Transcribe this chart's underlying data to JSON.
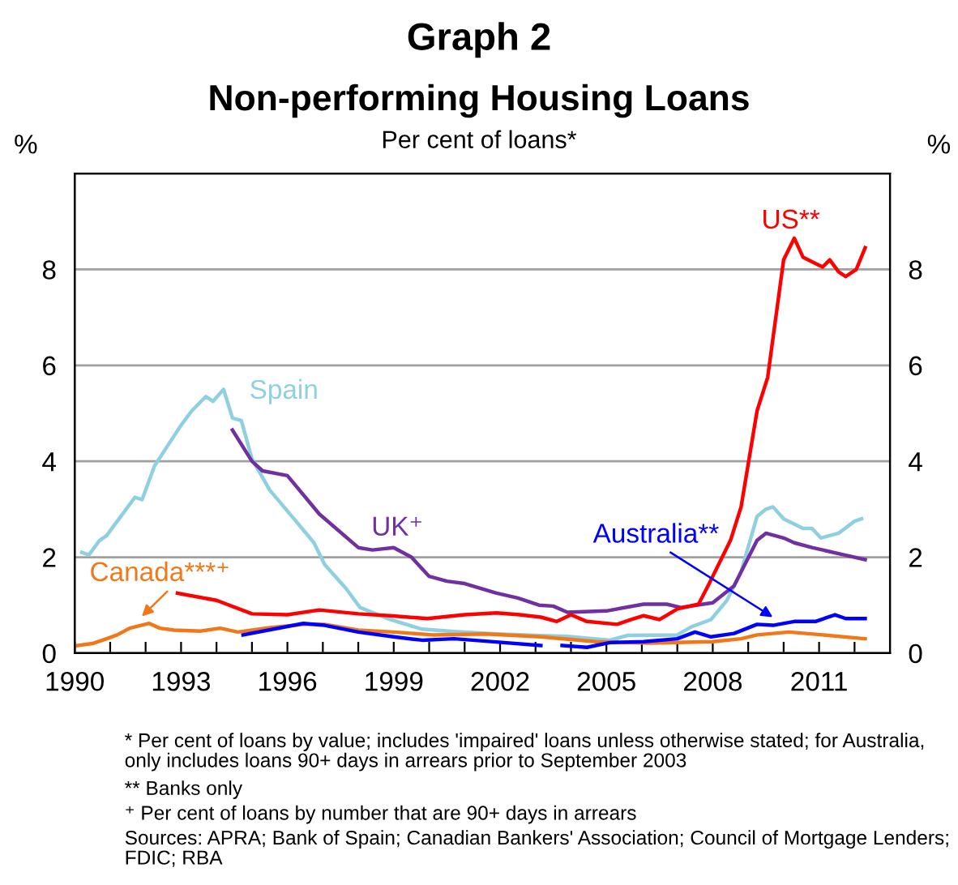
{
  "chart_data": {
    "type": "line",
    "title": "Non-performing Housing Loans",
    "subtitle": "Per cent of loans*",
    "ylabel": "%",
    "y2label": "%",
    "xlim": [
      1990,
      2013
    ],
    "xticks": [
      1990,
      {
        "value": 1991,
        "label": null
      },
      {
        "value": 1992,
        "label": null
      },
      1993,
      {
        "value": 1994,
        "label": null
      },
      {
        "value": 1995,
        "label": null
      },
      1996,
      {
        "value": 1997,
        "label": null
      },
      {
        "value": 1998,
        "label": null
      },
      1999,
      {
        "value": 2000,
        "label": null
      },
      {
        "value": 2001,
        "label": null
      },
      2002,
      {
        "value": 2003,
        "label": null
      },
      {
        "value": 2004,
        "label": null
      },
      2005,
      {
        "value": 2006,
        "label": null
      },
      {
        "value": 2007,
        "label": null
      },
      2008,
      {
        "value": 2009,
        "label": null
      },
      {
        "value": 2010,
        "label": null
      },
      2011,
      {
        "value": 2012,
        "label": null
      }
    ],
    "ylim": [
      0,
      10
    ],
    "yticks": [
      0,
      2,
      4,
      6,
      8
    ],
    "y2lim": [
      0,
      10
    ],
    "y2ticks": [
      0,
      2,
      4,
      6,
      8
    ],
    "grid": "y",
    "legend": false,
    "line_style": "solid",
    "marker": "none",
    "series": [
      {
        "name": "Spain",
        "color": "#8ecfe0",
        "x": [
          1990.2,
          1990.4,
          1990.7,
          1990.9,
          1991.25,
          1991.7,
          1991.9,
          1992.25,
          1992.6,
          1993.0,
          1993.3,
          1993.7,
          1993.9,
          1994.2,
          1994.45,
          1994.7,
          1995.0,
          1995.5,
          1996.3,
          1996.75,
          1997.05,
          1997.65,
          1998.05,
          1998.9,
          1999.8,
          2000.7,
          2001.9,
          2003.0,
          2003.9,
          2005.1,
          2005.6,
          2007.0,
          2007.4,
          2007.95,
          2008.4,
          2008.8,
          2009.25,
          2009.5,
          2009.7,
          2010.0,
          2010.55,
          2010.8,
          2011.05,
          2011.55,
          2012.0,
          2012.2
        ],
        "values": [
          2.1,
          2.05,
          2.35,
          2.45,
          2.8,
          3.25,
          3.2,
          3.9,
          4.3,
          4.75,
          5.05,
          5.35,
          5.25,
          5.5,
          4.9,
          4.85,
          4.05,
          3.4,
          2.7,
          2.3,
          1.85,
          1.35,
          0.95,
          0.7,
          0.5,
          0.45,
          0.4,
          0.37,
          0.35,
          0.27,
          0.37,
          0.38,
          0.55,
          0.7,
          1.1,
          1.7,
          2.85,
          3.0,
          3.05,
          2.8,
          2.6,
          2.6,
          2.4,
          2.5,
          2.75,
          2.8
        ]
      },
      {
        "name": "UK⁺",
        "color": "#7030a0",
        "x": [
          1994.45,
          1995.0,
          1995.3,
          1996.0,
          1996.9,
          1998.0,
          1998.4,
          1999.0,
          1999.5,
          2000.0,
          2000.5,
          2001.0,
          2001.9,
          2002.5,
          2003.1,
          2003.5,
          2003.9,
          2005.0,
          2006.05,
          2006.7,
          2007.1,
          2008.0,
          2008.6,
          2009.25,
          2009.5,
          2010.0,
          2010.3,
          2010.8,
          2011.7,
          2012.3
        ],
        "values": [
          4.65,
          4.0,
          3.8,
          3.7,
          2.9,
          2.2,
          2.15,
          2.2,
          2.0,
          1.6,
          1.5,
          1.45,
          1.25,
          1.15,
          1.0,
          0.98,
          0.85,
          0.88,
          1.02,
          1.02,
          0.95,
          1.05,
          1.4,
          2.35,
          2.5,
          2.4,
          2.3,
          2.2,
          2.05,
          1.95
        ]
      },
      {
        "name": "US**",
        "color": "#ff0000",
        "x": [
          1992.9,
          1994.0,
          1995.0,
          1996.0,
          1996.9,
          1998.0,
          1998.9,
          1999.95,
          2001.0,
          2001.9,
          2002.55,
          2003.15,
          2003.6,
          2004.0,
          2004.45,
          2005.3,
          2005.7,
          2006.05,
          2006.5,
          2007.0,
          2007.6,
          2007.9,
          2008.5,
          2008.8,
          2009.25,
          2009.55,
          2010.0,
          2010.3,
          2010.55,
          2011.1,
          2011.3,
          2011.55,
          2011.75,
          2012.05,
          2012.3
        ],
        "values": [
          1.25,
          1.1,
          0.82,
          0.8,
          0.9,
          0.82,
          0.78,
          0.72,
          0.8,
          0.84,
          0.8,
          0.75,
          0.66,
          0.8,
          0.66,
          0.6,
          0.7,
          0.78,
          0.7,
          0.92,
          1.02,
          1.45,
          2.35,
          3.05,
          5.05,
          5.75,
          8.2,
          8.65,
          8.25,
          8.05,
          8.2,
          7.95,
          7.85,
          8.0,
          8.45
        ]
      },
      {
        "name": "Canada***⁺",
        "color": "#f07818",
        "x": [
          1990.0,
          1990.5,
          1990.9,
          1991.2,
          1991.55,
          1992.1,
          1992.4,
          1992.8,
          1993.55,
          1994.1,
          1994.6,
          1995.5,
          1996.45,
          1997.05,
          1998.0,
          1999.0,
          2000.1,
          2001.6,
          2003.15,
          2004.7,
          2006.2,
          2008.0,
          2008.8,
          2009.25,
          2010.15,
          2011.1,
          2012.3
        ],
        "values": [
          0.15,
          0.2,
          0.3,
          0.38,
          0.52,
          0.62,
          0.52,
          0.48,
          0.46,
          0.52,
          0.44,
          0.53,
          0.6,
          0.6,
          0.48,
          0.44,
          0.38,
          0.4,
          0.34,
          0.24,
          0.21,
          0.24,
          0.3,
          0.38,
          0.44,
          0.38,
          0.3
        ]
      },
      {
        "name": "Australia**",
        "color": "#0000ff",
        "x": [
          1994.75,
          1996.45,
          1997.05,
          1998.0,
          1999.0,
          1999.8,
          2000.7,
          2001.6,
          2003.15,
          2003.6,
          2003.75,
          2004.45,
          2005.1,
          2006.05,
          2007.0,
          2007.5,
          2007.95,
          2008.6,
          2009.25,
          2009.7,
          2010.3,
          2010.9,
          2011.45,
          2011.75,
          2012.3
        ],
        "values": [
          0.38,
          0.62,
          0.58,
          0.44,
          0.34,
          0.27,
          0.3,
          0.25,
          0.16,
          null,
          0.16,
          0.12,
          0.22,
          0.24,
          0.3,
          0.44,
          0.34,
          0.41,
          0.6,
          0.58,
          0.66,
          0.66,
          0.8,
          0.72,
          0.72
        ]
      }
    ],
    "annotations": [
      "Graph 2",
      "* Per cent of loans by value; includes 'impaired' loans unless otherwise stated; for Australia, only includes loans 90+ days in arrears prior to September 2003",
      "** Banks only",
      "⁺ Per cent of loans by number that are 90+ days in arrears",
      "Sources: APRA; Bank of Spain; Canadian Bankers' Association; Council of Mortgage Lenders; FDIC; RBA"
    ]
  }
}
